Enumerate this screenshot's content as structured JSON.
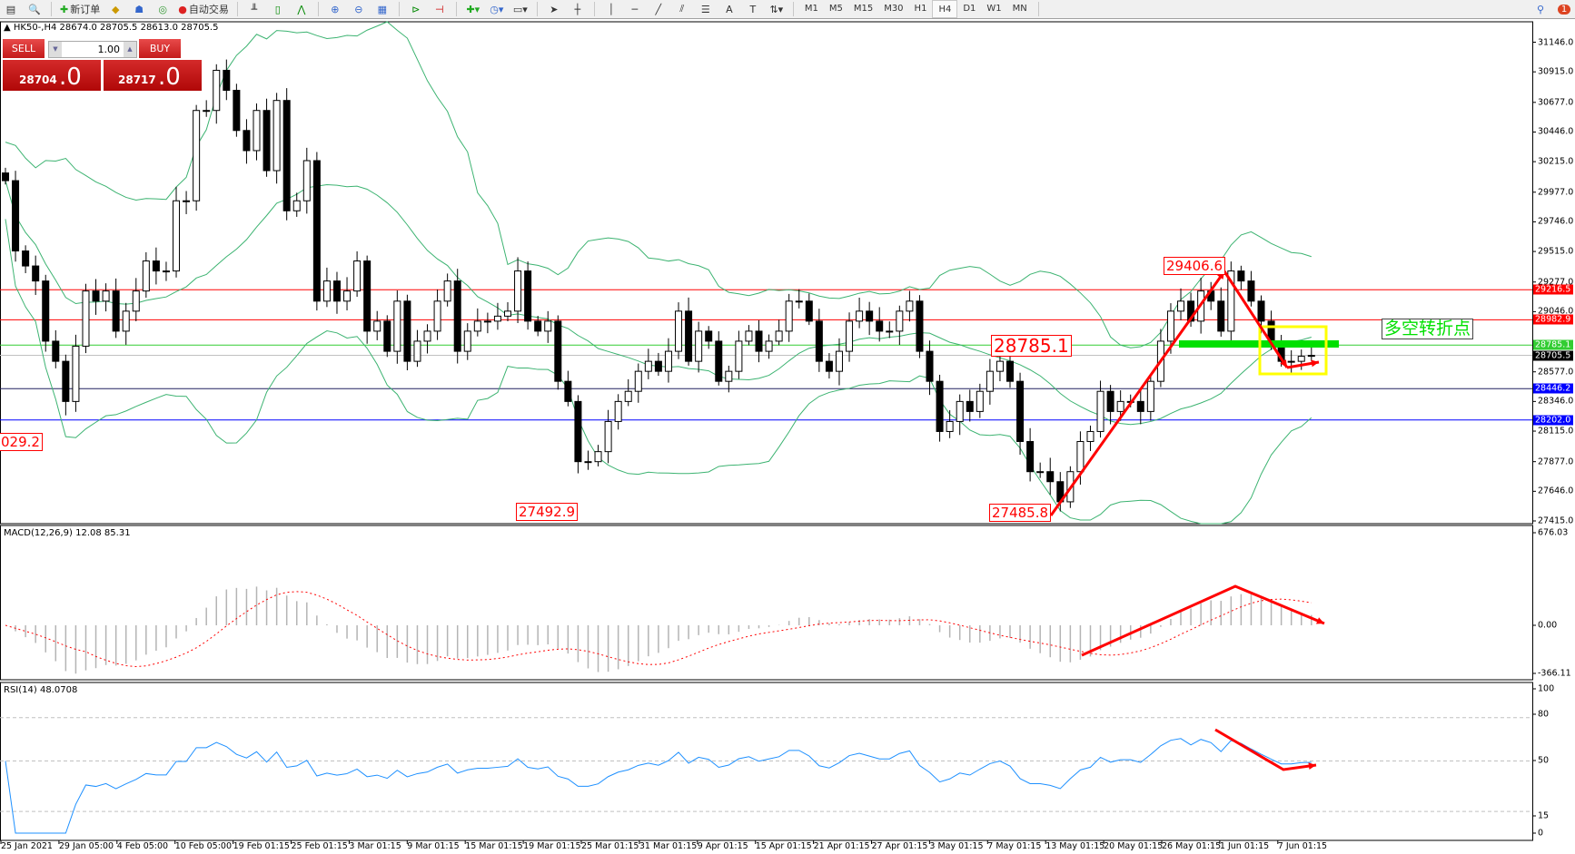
{
  "toolbar": {
    "new_order_label": "新订单",
    "auto_trading_label": "自动交易",
    "timeframes": [
      "M1",
      "M5",
      "M15",
      "M30",
      "H1",
      "H4",
      "D1",
      "W1",
      "MN"
    ],
    "active_timeframe": "H4",
    "notification_count": "1"
  },
  "chart": {
    "header": "HK50-,H4  28674.0 28705.5 28613.0 28705.5",
    "one_click": {
      "sell_label": "SELL",
      "buy_label": "BUY",
      "volume": "1.00",
      "sell_price_main": "28704",
      "sell_price_frac": ".0",
      "buy_price_main": "28717",
      "buy_price_frac": ".0"
    },
    "price_axis": [
      "31146.0",
      "30915.0",
      "30677.0",
      "30446.0",
      "30215.0",
      "29977.0",
      "29746.0",
      "29515.0",
      "29277.0",
      "29046.0",
      "28577.0",
      "28346.0",
      "28115.0",
      "27877.0",
      "27646.0",
      "27415.0"
    ],
    "price_range": [
      27415.0,
      31146.0
    ],
    "horizontal_lines": [
      {
        "value": 29216.5,
        "label": "29216.5",
        "color": "#ff0000"
      },
      {
        "value": 28982.9,
        "label": "28982.9",
        "color": "#ff0000"
      },
      {
        "value": 28785.1,
        "label": "28785.1",
        "color": "#32cd32"
      },
      {
        "value": 28705.5,
        "label": "28705.5",
        "color": "#000000",
        "line_color": "#c0c0c0"
      },
      {
        "value": 28446.2,
        "label": "28446.2",
        "color": "#0000ff",
        "line_color": "#202060"
      },
      {
        "value": 28202.0,
        "label": "28202.0",
        "color": "#0000ff"
      }
    ],
    "closes": [
      30067,
      29519,
      29402,
      29285,
      28816,
      28659,
      28346,
      28777,
      29207,
      29128,
      29207,
      28894,
      29050,
      29207,
      29441,
      29363,
      29363,
      29910,
      29910,
      30614,
      30614,
      30927,
      30771,
      30458,
      30301,
      30614,
      30145,
      30692,
      29832,
      29910,
      30223,
      29128,
      29285,
      29128,
      29207,
      29441,
      28894,
      28972,
      28737,
      29128,
      28659,
      28816,
      28894,
      29128,
      29285,
      28737,
      28894,
      28972,
      28972,
      29011,
      29050,
      29363,
      28972,
      28894,
      28972,
      28503,
      28346,
      27877,
      27877,
      27955,
      28190,
      28346,
      28425,
      28581,
      28659,
      28581,
      28737,
      29050,
      28659,
      28894,
      28816,
      28503,
      28581,
      28816,
      28894,
      28737,
      28816,
      28894,
      29128,
      29128,
      28972,
      28659,
      28581,
      28737,
      28972,
      29050,
      28972,
      28894,
      28894,
      29050,
      29128,
      28737,
      28503,
      28112,
      28190,
      28346,
      28268,
      28425,
      28581,
      28659,
      28503,
      28034,
      27799,
      27799,
      27721,
      27564,
      27799,
      28034,
      28112,
      28425,
      28268,
      28346,
      28346,
      28268,
      28503,
      28816,
      29050,
      29128,
      28972,
      29207,
      29128,
      28894,
      29363,
      29285,
      29128,
      28972,
      28816,
      28659,
      28659,
      28698,
      28705
    ],
    "annotations": {
      "high_label": "29406.6",
      "mid_label": "28785.1",
      "low_label": "27485.8",
      "low2_label": "27492.9",
      "left_label": "029.2",
      "pivot_text": "多空转折点"
    },
    "colors": {
      "bands": "#3cb371",
      "arrows": "#ff0000",
      "box": "#ffff00",
      "zone": "#00e000"
    }
  },
  "macd": {
    "title": "MACD(12,26,9) 12.08 85.31",
    "axis": [
      "676.03",
      "0.00",
      "-366.11"
    ]
  },
  "rsi": {
    "title": "RSI(14) 48.0708",
    "axis": [
      "100",
      "80",
      "50",
      "15",
      "0"
    ],
    "color": "#1e90ff"
  },
  "time_axis": [
    "25 Jan 2021",
    "29 Jan 05:00",
    "4 Feb 05:00",
    "10 Feb 05:00",
    "19 Feb 01:15",
    "25 Feb 01:15",
    "3 Mar 01:15",
    "9 Mar 01:15",
    "15 Mar 01:15",
    "19 Mar 01:15",
    "25 Mar 01:15",
    "31 Mar 01:15",
    "9 Apr 01:15",
    "15 Apr 01:15",
    "21 Apr 01:15",
    "27 Apr 01:15",
    "3 May 01:15",
    "7 May 01:15",
    "13 May 01:15",
    "20 May 01:15",
    "26 May 01:15",
    "1 Jun 01:15",
    "7 Jun 01:15"
  ]
}
